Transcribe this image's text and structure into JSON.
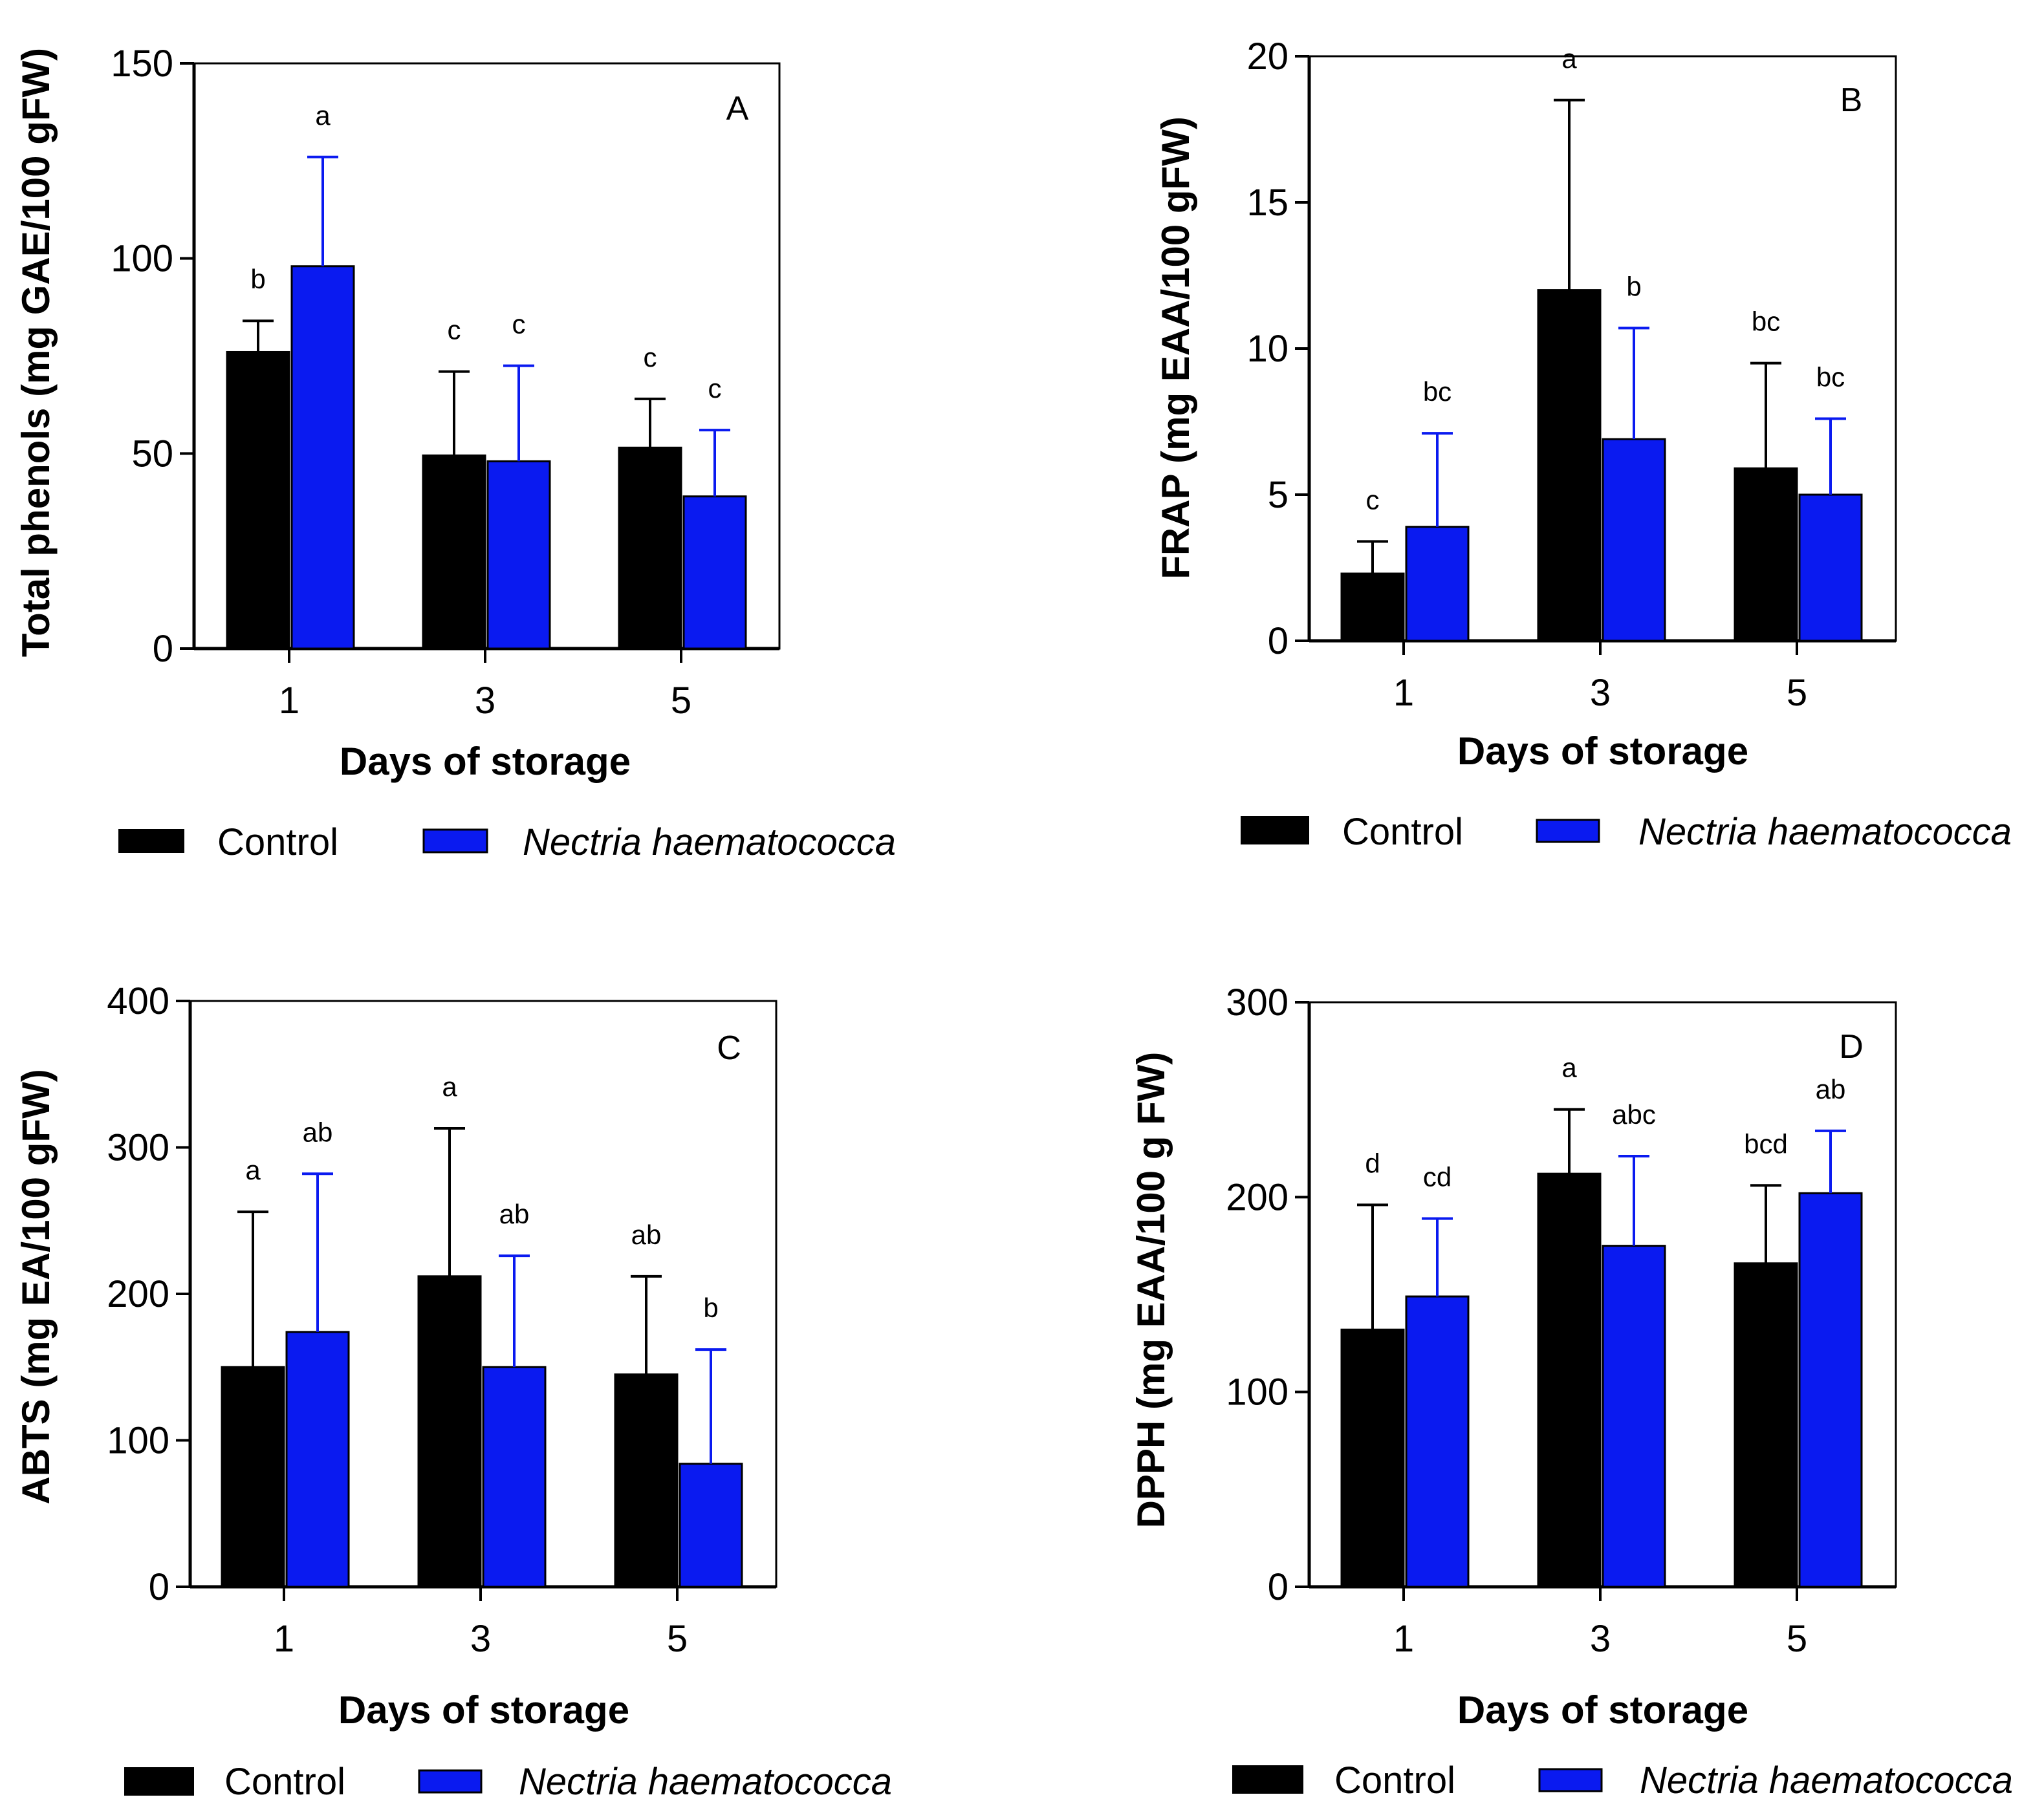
{
  "colors": {
    "control": "#000000",
    "treatment": "#0a1af0",
    "axis": "#000000"
  },
  "legend": {
    "control_label": "Control",
    "treatment_label": "Nectria haematococca"
  },
  "chart_data": [
    {
      "type": "bar",
      "panel_label": "A",
      "title": "",
      "xlabel": "Days of storage",
      "ylabel": "Total phenols (mg GAE/100 gFW)",
      "categories": [
        "1",
        "3",
        "5"
      ],
      "ylim": [
        0,
        150
      ],
      "yticks": [
        "0",
        "50",
        "100",
        "150"
      ],
      "series": [
        {
          "name": "Control",
          "values": [
            76,
            49.5,
            51.5
          ],
          "errors": [
            8,
            21.5,
            12.5
          ],
          "letters": [
            "b",
            "c",
            "c"
          ]
        },
        {
          "name": "Nectria haematococca",
          "values": [
            98,
            48,
            39
          ],
          "errors": [
            28,
            24.5,
            17
          ],
          "letters": [
            "a",
            "c",
            "c"
          ]
        }
      ]
    },
    {
      "type": "bar",
      "panel_label": "B",
      "title": "",
      "xlabel": "Days of storage",
      "ylabel": "FRAP (mg EAA/100 gFW)",
      "categories": [
        "1",
        "3",
        "5"
      ],
      "ylim": [
        0,
        20
      ],
      "yticks": [
        "0",
        "5",
        "10",
        "15",
        "20"
      ],
      "series": [
        {
          "name": "Control",
          "values": [
            2.3,
            12,
            5.9
          ],
          "errors": [
            1.1,
            6.5,
            3.6
          ],
          "letters": [
            "c",
            "a",
            "bc"
          ]
        },
        {
          "name": "Nectria haematococca",
          "values": [
            3.9,
            6.9,
            5
          ],
          "errors": [
            3.2,
            3.8,
            2.6
          ],
          "letters": [
            "bc",
            "b",
            "bc"
          ]
        }
      ]
    },
    {
      "type": "bar",
      "panel_label": "C",
      "title": "",
      "xlabel": "Days of storage",
      "ylabel": "ABTS (mg EA/100 gFW)",
      "categories": [
        "1",
        "3",
        "5"
      ],
      "ylim": [
        0,
        400
      ],
      "yticks": [
        "0",
        "100",
        "200",
        "300",
        "400"
      ],
      "series": [
        {
          "name": "Control",
          "values": [
            150,
            212,
            145
          ],
          "errors": [
            106,
            101,
            67
          ],
          "letters": [
            "a",
            "a",
            "ab"
          ]
        },
        {
          "name": "Nectria haematococca",
          "values": [
            174,
            150,
            84
          ],
          "errors": [
            108,
            76,
            78
          ],
          "letters": [
            "ab",
            "ab",
            "b"
          ]
        }
      ]
    },
    {
      "type": "bar",
      "panel_label": "D",
      "title": "",
      "xlabel": "Days of storage",
      "ylabel": "DPPH (mg EAA/100 g FW)",
      "categories": [
        "1",
        "3",
        "5"
      ],
      "ylim": [
        0,
        300
      ],
      "yticks": [
        "0",
        "100",
        "200",
        "300"
      ],
      "series": [
        {
          "name": "Control",
          "values": [
            132,
            212,
            166
          ],
          "errors": [
            64,
            33,
            40
          ],
          "letters": [
            "d",
            "a",
            "bcd"
          ]
        },
        {
          "name": "Nectria haematococca",
          "values": [
            149,
            175,
            202
          ],
          "errors": [
            40,
            46,
            32
          ],
          "letters": [
            "cd",
            "abc",
            "ab"
          ]
        }
      ]
    }
  ]
}
